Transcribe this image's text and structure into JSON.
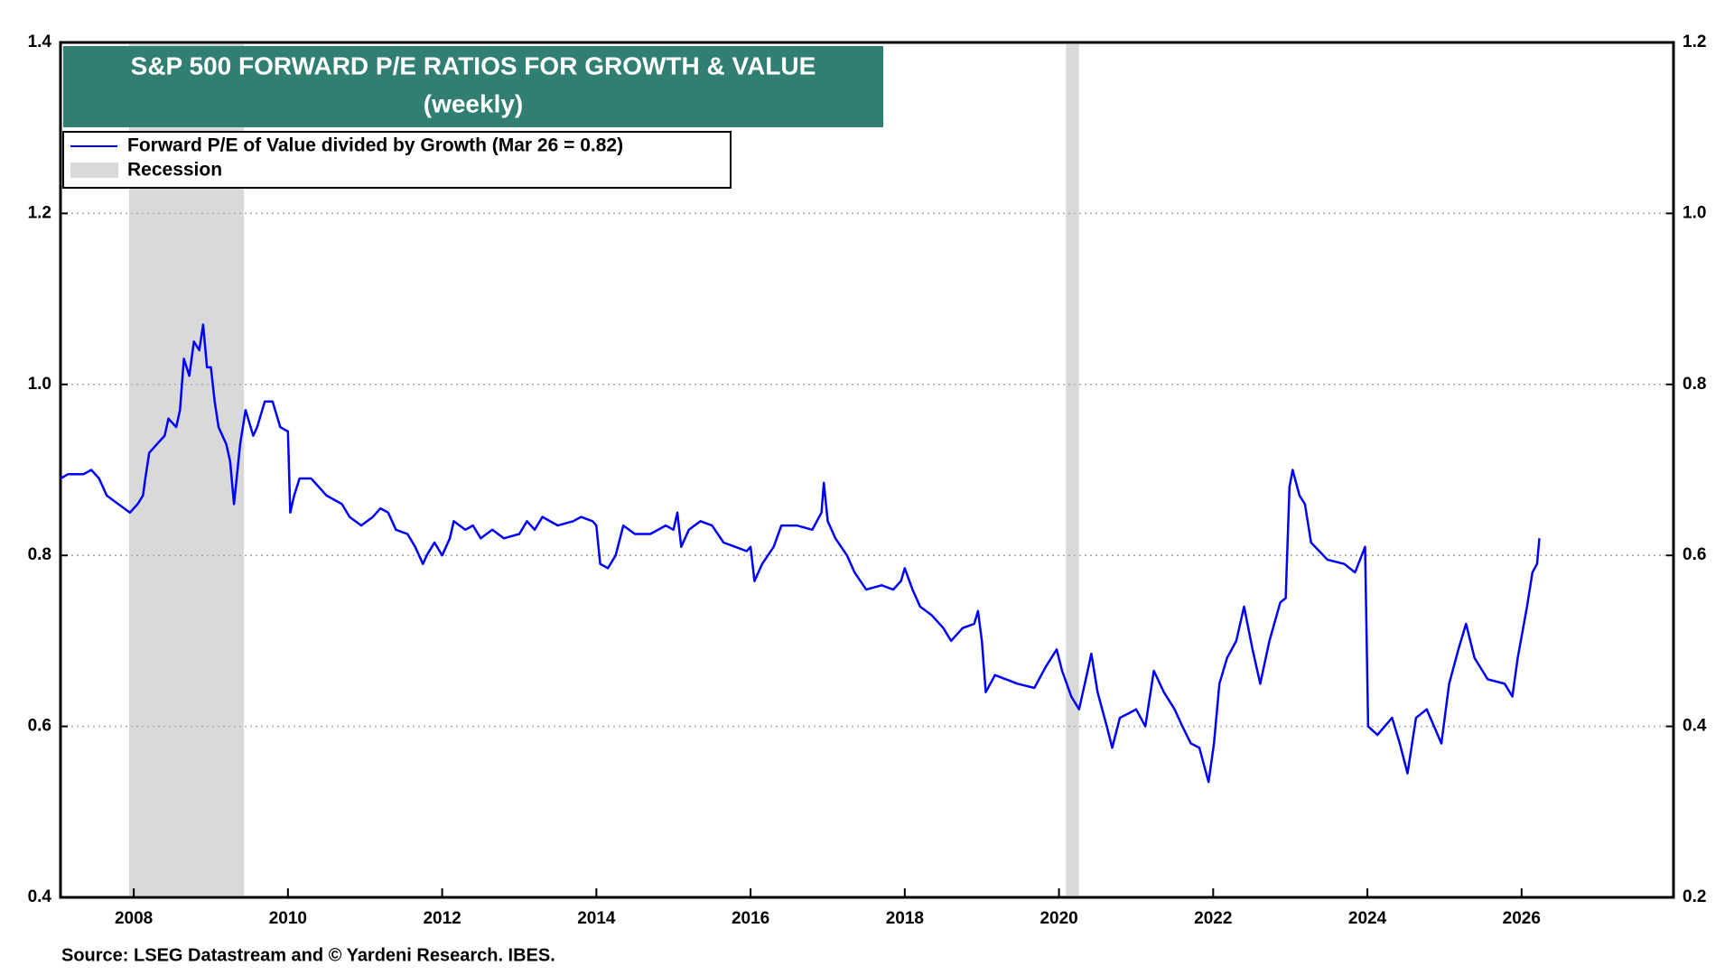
{
  "chart_data": {
    "type": "line",
    "title": "S&P 500 FORWARD P/E RATIOS FOR GROWTH & VALUE",
    "subtitle": "(weekly)",
    "source": "Source: LSEG Datastream and © Yardeni Research. IBES.",
    "xlim": [
      2007.05,
      2027.97
    ],
    "xticks": [
      2008,
      2010,
      2012,
      2014,
      2016,
      2018,
      2020,
      2022,
      2024,
      2026
    ],
    "ylim": [
      0.4,
      1.4
    ],
    "yticks": [
      0.4,
      0.6,
      0.8,
      {
        "value": 1.0,
        "label": "1.0"
      },
      1.2,
      1.4
    ],
    "y2lim": [
      0.2,
      1.2
    ],
    "y2ticks": [
      0.2,
      0.4,
      0.6,
      0.8,
      {
        "value": 1.0,
        "label": "1.0"
      },
      1.2
    ],
    "grid": true,
    "recessions": {
      "name": "Recession",
      "color": "#d9d9d9",
      "ranges": [
        [
          2007.94,
          2009.43
        ],
        [
          2020.09,
          2020.26
        ]
      ]
    },
    "x": [
      2007.05,
      2007.15,
      2007.35,
      2007.45,
      2007.55,
      2007.65,
      2007.8,
      2007.95,
      2008.05,
      2008.12,
      2008.15,
      2008.2,
      2008.3,
      2008.4,
      2008.45,
      2008.55,
      2008.6,
      2008.65,
      2008.72,
      2008.78,
      2008.85,
      2008.9,
      2008.95,
      2009.0,
      2009.05,
      2009.1,
      2009.2,
      2009.25,
      2009.3,
      2009.38,
      2009.45,
      2009.55,
      2009.6,
      2009.7,
      2009.8,
      2009.9,
      2010.0,
      2010.03,
      2010.08,
      2010.15,
      2010.3,
      2010.4,
      2010.5,
      2010.7,
      2010.8,
      2010.95,
      2011.1,
      2011.2,
      2011.3,
      2011.4,
      2011.55,
      2011.65,
      2011.75,
      2011.8,
      2011.9,
      2012.0,
      2012.1,
      2012.15,
      2012.3,
      2012.4,
      2012.5,
      2012.65,
      2012.8,
      2013.0,
      2013.1,
      2013.2,
      2013.3,
      2013.5,
      2013.7,
      2013.8,
      2013.95,
      2014.0,
      2014.05,
      2014.15,
      2014.25,
      2014.35,
      2014.5,
      2014.7,
      2014.9,
      2015.0,
      2015.05,
      2015.1,
      2015.2,
      2015.35,
      2015.5,
      2015.65,
      2015.8,
      2015.95,
      2016.0,
      2016.05,
      2016.15,
      2016.3,
      2016.4,
      2016.6,
      2016.8,
      2016.92,
      2016.95,
      2017.0,
      2017.1,
      2017.25,
      2017.35,
      2017.5,
      2017.7,
      2017.85,
      2017.95,
      2018.0,
      2018.1,
      2018.2,
      2018.35,
      2018.5,
      2018.6,
      2018.75,
      2018.9,
      2018.95,
      2019.0,
      2019.05,
      2019.17,
      2019.46,
      2019.68,
      2019.83,
      2019.97,
      2020.04,
      2020.16,
      2020.26,
      2020.36,
      2020.42,
      2020.5,
      2020.62,
      2020.69,
      2020.79,
      2020.9,
      2021.0,
      2021.12,
      2021.23,
      2021.36,
      2021.5,
      2021.6,
      2021.71,
      2021.82,
      2021.94,
      2022.01,
      2022.08,
      2022.18,
      2022.3,
      2022.4,
      2022.51,
      2022.61,
      2022.73,
      2022.87,
      2022.94,
      2022.99,
      2023.03,
      2023.12,
      2023.19,
      2023.27,
      2023.48,
      2023.7,
      2023.84,
      2023.97,
      2024.01,
      2024.13,
      2024.32,
      2024.42,
      2024.52,
      2024.63,
      2024.77,
      2024.96,
      2025.06,
      2025.18,
      2025.28,
      2025.39,
      2025.56,
      2025.78,
      2025.88,
      2025.95,
      2026.07,
      2026.14,
      2026.2,
      2026.23
    ],
    "series": [
      {
        "name": "Forward P/E of Value divided by Growth (Mar 26 = 0.82)",
        "color": "#0000ff",
        "values": [
          0.89,
          0.895,
          0.895,
          0.9,
          0.89,
          0.87,
          0.86,
          0.85,
          0.86,
          0.87,
          0.89,
          0.92,
          0.93,
          0.94,
          0.96,
          0.95,
          0.97,
          1.03,
          1.01,
          1.05,
          1.04,
          1.07,
          1.02,
          1.02,
          0.98,
          0.95,
          0.93,
          0.91,
          0.86,
          0.93,
          0.97,
          0.94,
          0.95,
          0.98,
          0.98,
          0.95,
          0.945,
          0.85,
          0.87,
          0.89,
          0.89,
          0.88,
          0.87,
          0.86,
          0.845,
          0.835,
          0.845,
          0.855,
          0.85,
          0.83,
          0.825,
          0.81,
          0.79,
          0.8,
          0.815,
          0.8,
          0.82,
          0.84,
          0.83,
          0.835,
          0.82,
          0.83,
          0.82,
          0.825,
          0.84,
          0.83,
          0.845,
          0.835,
          0.84,
          0.845,
          0.84,
          0.835,
          0.79,
          0.785,
          0.8,
          0.835,
          0.825,
          0.825,
          0.835,
          0.83,
          0.85,
          0.81,
          0.83,
          0.84,
          0.835,
          0.815,
          0.81,
          0.805,
          0.81,
          0.77,
          0.79,
          0.81,
          0.835,
          0.835,
          0.83,
          0.85,
          0.885,
          0.84,
          0.82,
          0.8,
          0.78,
          0.76,
          0.765,
          0.76,
          0.77,
          0.785,
          0.76,
          0.74,
          0.73,
          0.715,
          0.7,
          0.715,
          0.72,
          0.735,
          0.7,
          0.64,
          0.66,
          0.65,
          0.645,
          0.67,
          0.69,
          0.665,
          0.635,
          0.62,
          0.66,
          0.685,
          0.64,
          0.6,
          0.575,
          0.61,
          0.615,
          0.62,
          0.6,
          0.665,
          0.64,
          0.62,
          0.6,
          0.58,
          0.575,
          0.535,
          0.58,
          0.65,
          0.68,
          0.7,
          0.74,
          0.69,
          0.65,
          0.7,
          0.745,
          0.75,
          0.88,
          0.9,
          0.87,
          0.86,
          0.815,
          0.795,
          0.79,
          0.78,
          0.81,
          0.6,
          0.59,
          0.61,
          0.58,
          0.545,
          0.61,
          0.62,
          0.58,
          0.65,
          0.69,
          0.72,
          0.68,
          0.655,
          0.65,
          0.635,
          0.68,
          0.74,
          0.78,
          0.79,
          0.82
        ]
      }
    ]
  }
}
